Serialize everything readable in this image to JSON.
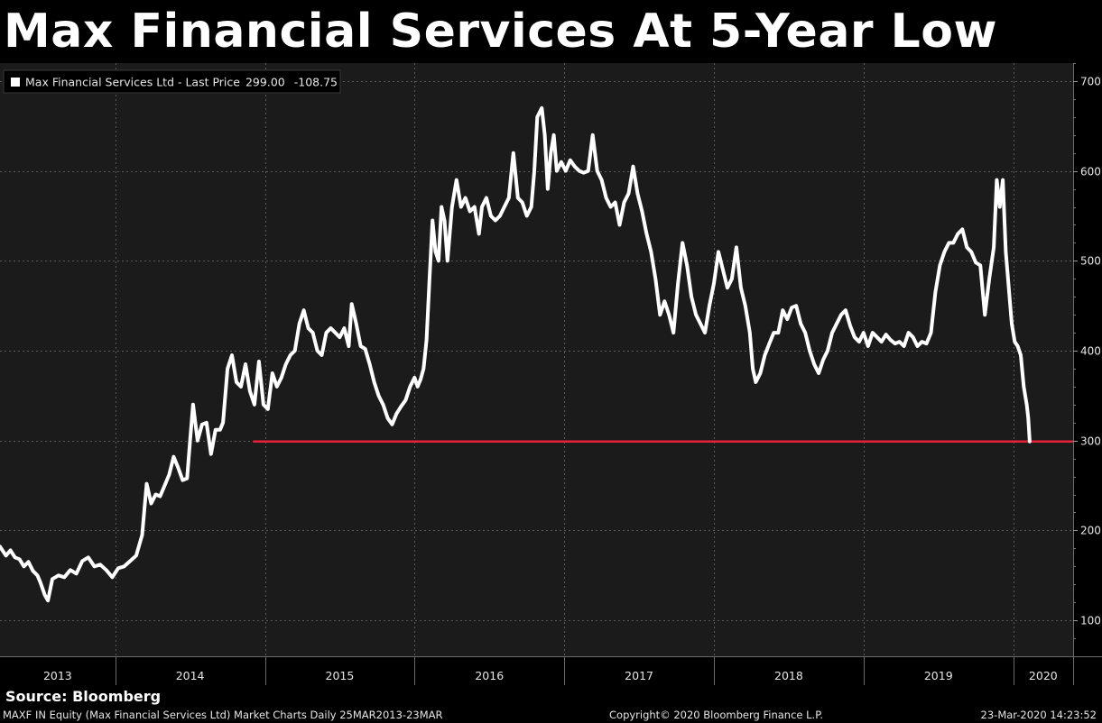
{
  "title": "Max Financial Services At 5-Year Low",
  "source": "Source: Bloomberg",
  "footer": {
    "left": "MAXF IN Equity (Max Financial Services Ltd) Market Charts  Daily 25MAR2013-23MAR",
    "center": "Copyright© 2020 Bloomberg Finance L.P.",
    "right": "23-Mar-2020 14:23:52"
  },
  "colors": {
    "background": "#000000",
    "plot_bg": "#1b1b1b",
    "series": "#ffffff",
    "reference": "#e8213a",
    "grid": "#5a5a5a"
  },
  "chart_data": {
    "type": "line",
    "legend": {
      "label": "Max Financial Services Ltd - Last Price",
      "last_price": "299.00",
      "change": "-108.75"
    },
    "ylim": [
      60,
      720
    ],
    "yticks": [
      100,
      200,
      300,
      400,
      500,
      600,
      700
    ],
    "year_labels": [
      "2013",
      "2014",
      "2015",
      "2016",
      "2017",
      "2018",
      "2019",
      "2020"
    ],
    "year_boundaries": [
      2014.0,
      2015.0,
      2016.0,
      2017.0,
      2018.0,
      2019.0,
      2020.0
    ],
    "xlim": [
      2013.23,
      2020.4
    ],
    "reference_line": {
      "value": 299,
      "x_start": 2014.92
    },
    "series": [
      {
        "name": "Max Financial Services Ltd",
        "points": [
          [
            2013.23,
            182
          ],
          [
            2013.27,
            172
          ],
          [
            2013.3,
            178
          ],
          [
            2013.33,
            170
          ],
          [
            2013.36,
            168
          ],
          [
            2013.39,
            160
          ],
          [
            2013.42,
            165
          ],
          [
            2013.45,
            155
          ],
          [
            2013.48,
            150
          ],
          [
            2013.5,
            142
          ],
          [
            2013.53,
            128
          ],
          [
            2013.55,
            122
          ],
          [
            2013.58,
            146
          ],
          [
            2013.62,
            150
          ],
          [
            2013.66,
            148
          ],
          [
            2013.7,
            156
          ],
          [
            2013.74,
            152
          ],
          [
            2013.78,
            166
          ],
          [
            2013.82,
            170
          ],
          [
            2013.86,
            160
          ],
          [
            2013.9,
            162
          ],
          [
            2013.94,
            156
          ],
          [
            2013.98,
            148
          ],
          [
            2014.02,
            158
          ],
          [
            2014.06,
            160
          ],
          [
            2014.1,
            166
          ],
          [
            2014.14,
            172
          ],
          [
            2014.18,
            195
          ],
          [
            2014.21,
            252
          ],
          [
            2014.24,
            230
          ],
          [
            2014.27,
            240
          ],
          [
            2014.3,
            238
          ],
          [
            2014.33,
            250
          ],
          [
            2014.36,
            262
          ],
          [
            2014.39,
            282
          ],
          [
            2014.42,
            270
          ],
          [
            2014.45,
            256
          ],
          [
            2014.48,
            258
          ],
          [
            2014.5,
            300
          ],
          [
            2014.52,
            340
          ],
          [
            2014.55,
            300
          ],
          [
            2014.58,
            318
          ],
          [
            2014.61,
            320
          ],
          [
            2014.64,
            285
          ],
          [
            2014.67,
            312
          ],
          [
            2014.7,
            312
          ],
          [
            2014.72,
            320
          ],
          [
            2014.75,
            380
          ],
          [
            2014.78,
            395
          ],
          [
            2014.81,
            365
          ],
          [
            2014.84,
            360
          ],
          [
            2014.87,
            385
          ],
          [
            2014.9,
            355
          ],
          [
            2014.93,
            340
          ],
          [
            2014.96,
            388
          ],
          [
            2014.99,
            340
          ],
          [
            2015.02,
            335
          ],
          [
            2015.05,
            375
          ],
          [
            2015.08,
            360
          ],
          [
            2015.11,
            370
          ],
          [
            2015.14,
            385
          ],
          [
            2015.17,
            395
          ],
          [
            2015.2,
            400
          ],
          [
            2015.23,
            430
          ],
          [
            2015.26,
            445
          ],
          [
            2015.29,
            425
          ],
          [
            2015.32,
            420
          ],
          [
            2015.35,
            400
          ],
          [
            2015.38,
            395
          ],
          [
            2015.41,
            420
          ],
          [
            2015.44,
            425
          ],
          [
            2015.47,
            420
          ],
          [
            2015.5,
            415
          ],
          [
            2015.53,
            425
          ],
          [
            2015.56,
            405
          ],
          [
            2015.58,
            452
          ],
          [
            2015.61,
            430
          ],
          [
            2015.64,
            405
          ],
          [
            2015.67,
            402
          ],
          [
            2015.7,
            385
          ],
          [
            2015.73,
            365
          ],
          [
            2015.76,
            350
          ],
          [
            2015.79,
            340
          ],
          [
            2015.82,
            325
          ],
          [
            2015.85,
            318
          ],
          [
            2015.88,
            330
          ],
          [
            2015.91,
            338
          ],
          [
            2015.94,
            345
          ],
          [
            2015.97,
            360
          ],
          [
            2016.0,
            370
          ],
          [
            2016.02,
            360
          ],
          [
            2016.04,
            368
          ],
          [
            2016.06,
            380
          ],
          [
            2016.08,
            412
          ],
          [
            2016.1,
            480
          ],
          [
            2016.12,
            545
          ],
          [
            2016.14,
            510
          ],
          [
            2016.16,
            500
          ],
          [
            2016.18,
            560
          ],
          [
            2016.2,
            545
          ],
          [
            2016.22,
            500
          ],
          [
            2016.25,
            560
          ],
          [
            2016.28,
            590
          ],
          [
            2016.31,
            560
          ],
          [
            2016.34,
            570
          ],
          [
            2016.37,
            555
          ],
          [
            2016.4,
            560
          ],
          [
            2016.43,
            530
          ],
          [
            2016.45,
            560
          ],
          [
            2016.48,
            570
          ],
          [
            2016.51,
            550
          ],
          [
            2016.54,
            545
          ],
          [
            2016.57,
            550
          ],
          [
            2016.6,
            560
          ],
          [
            2016.63,
            570
          ],
          [
            2016.66,
            620
          ],
          [
            2016.69,
            570
          ],
          [
            2016.72,
            565
          ],
          [
            2016.75,
            550
          ],
          [
            2016.78,
            560
          ],
          [
            2016.8,
            600
          ],
          [
            2016.82,
            660
          ],
          [
            2016.85,
            670
          ],
          [
            2016.87,
            640
          ],
          [
            2016.89,
            580
          ],
          [
            2016.91,
            620
          ],
          [
            2016.93,
            640
          ],
          [
            2016.95,
            600
          ],
          [
            2016.98,
            610
          ],
          [
            2017.01,
            600
          ],
          [
            2017.04,
            612
          ],
          [
            2017.07,
            605
          ],
          [
            2017.1,
            600
          ],
          [
            2017.13,
            598
          ],
          [
            2017.16,
            600
          ],
          [
            2017.19,
            640
          ],
          [
            2017.22,
            600
          ],
          [
            2017.25,
            590
          ],
          [
            2017.28,
            570
          ],
          [
            2017.31,
            560
          ],
          [
            2017.34,
            565
          ],
          [
            2017.37,
            540
          ],
          [
            2017.4,
            565
          ],
          [
            2017.43,
            575
          ],
          [
            2017.46,
            605
          ],
          [
            2017.49,
            575
          ],
          [
            2017.52,
            555
          ],
          [
            2017.55,
            530
          ],
          [
            2017.58,
            510
          ],
          [
            2017.61,
            480
          ],
          [
            2017.64,
            440
          ],
          [
            2017.67,
            455
          ],
          [
            2017.7,
            440
          ],
          [
            2017.73,
            420
          ],
          [
            2017.76,
            475
          ],
          [
            2017.79,
            520
          ],
          [
            2017.82,
            495
          ],
          [
            2017.85,
            460
          ],
          [
            2017.88,
            440
          ],
          [
            2017.91,
            430
          ],
          [
            2017.94,
            420
          ],
          [
            2017.97,
            450
          ],
          [
            2018.0,
            475
          ],
          [
            2018.03,
            510
          ],
          [
            2018.06,
            490
          ],
          [
            2018.09,
            470
          ],
          [
            2018.12,
            480
          ],
          [
            2018.15,
            515
          ],
          [
            2018.18,
            470
          ],
          [
            2018.21,
            450
          ],
          [
            2018.24,
            420
          ],
          [
            2018.26,
            380
          ],
          [
            2018.28,
            365
          ],
          [
            2018.31,
            375
          ],
          [
            2018.34,
            395
          ],
          [
            2018.37,
            408
          ],
          [
            2018.4,
            420
          ],
          [
            2018.43,
            420
          ],
          [
            2018.46,
            445
          ],
          [
            2018.49,
            435
          ],
          [
            2018.52,
            448
          ],
          [
            2018.55,
            450
          ],
          [
            2018.58,
            430
          ],
          [
            2018.61,
            420
          ],
          [
            2018.64,
            400
          ],
          [
            2018.67,
            385
          ],
          [
            2018.7,
            375
          ],
          [
            2018.73,
            390
          ],
          [
            2018.76,
            400
          ],
          [
            2018.79,
            420
          ],
          [
            2018.82,
            430
          ],
          [
            2018.85,
            440
          ],
          [
            2018.88,
            445
          ],
          [
            2018.91,
            428
          ],
          [
            2018.94,
            415
          ],
          [
            2018.97,
            410
          ],
          [
            2019.0,
            420
          ],
          [
            2019.03,
            405
          ],
          [
            2019.06,
            420
          ],
          [
            2019.09,
            415
          ],
          [
            2019.12,
            410
          ],
          [
            2019.15,
            418
          ],
          [
            2019.18,
            412
          ],
          [
            2019.21,
            408
          ],
          [
            2019.24,
            410
          ],
          [
            2019.27,
            405
          ],
          [
            2019.3,
            420
          ],
          [
            2019.33,
            415
          ],
          [
            2019.36,
            405
          ],
          [
            2019.39,
            410
          ],
          [
            2019.42,
            408
          ],
          [
            2019.45,
            420
          ],
          [
            2019.48,
            465
          ],
          [
            2019.51,
            495
          ],
          [
            2019.54,
            510
          ],
          [
            2019.57,
            520
          ],
          [
            2019.6,
            520
          ],
          [
            2019.63,
            530
          ],
          [
            2019.66,
            535
          ],
          [
            2019.69,
            515
          ],
          [
            2019.72,
            510
          ],
          [
            2019.75,
            498
          ],
          [
            2019.78,
            495
          ],
          [
            2019.81,
            440
          ],
          [
            2019.84,
            480
          ],
          [
            2019.87,
            515
          ],
          [
            2019.89,
            590
          ],
          [
            2019.91,
            560
          ],
          [
            2019.93,
            590
          ],
          [
            2019.95,
            510
          ],
          [
            2019.97,
            470
          ],
          [
            2019.99,
            430
          ],
          [
            2020.01,
            410
          ],
          [
            2020.03,
            405
          ],
          [
            2020.05,
            395
          ],
          [
            2020.07,
            360
          ],
          [
            2020.09,
            340
          ],
          [
            2020.1,
            325
          ],
          [
            2020.11,
            299
          ]
        ]
      }
    ]
  }
}
